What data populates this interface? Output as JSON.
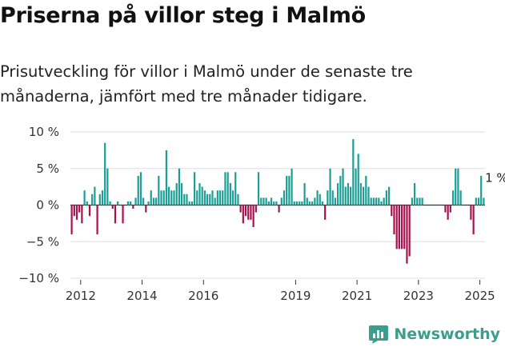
{
  "title": "Priserna på villor steg i Malmö",
  "subtitle": "Prisutveckling för villor i Malmö under de senaste tre månaderna, jämfört med tre månader tidigare.",
  "brand": {
    "name": "Newsworthy",
    "icon": "newsworthy-logo-icon"
  },
  "colors": {
    "positive": "#1a9e96",
    "negative": "#a8104e",
    "axis": "#333333",
    "grid": "#dddddd"
  },
  "chart_data": {
    "type": "bar",
    "start": "2011-09",
    "frequency": "monthly",
    "ylim": [
      -10,
      10
    ],
    "yticks": [
      -10,
      -5,
      0,
      5,
      10
    ],
    "ytick_labels": [
      "−10 %",
      "−5 %",
      "0 %",
      "5 %",
      "10 %"
    ],
    "xticks": [
      "2012",
      "2014",
      "2016",
      "2019",
      "2021",
      "2023",
      "2025"
    ],
    "annotation": {
      "text": "1 %",
      "value": 1
    },
    "values": [
      -4,
      -1.5,
      -2,
      -1,
      -2.5,
      2,
      0.5,
      -1.5,
      1.5,
      2.5,
      -4,
      1.5,
      2,
      8.5,
      5,
      0.5,
      -0.5,
      -2.5,
      0.5,
      0,
      -2.5,
      0,
      0.5,
      0.5,
      -0.5,
      1,
      4,
      4.5,
      1,
      -1,
      0.5,
      2,
      1,
      1,
      4,
      2,
      2,
      7.5,
      2.5,
      2,
      2,
      3,
      5,
      3,
      1.5,
      1.5,
      0.5,
      0.5,
      4.5,
      2,
      3,
      2.5,
      2,
      1.5,
      1.5,
      2,
      1,
      2,
      2,
      2,
      4.5,
      4.5,
      3,
      2,
      4.5,
      1.5,
      -1,
      -2.5,
      -1.5,
      -2,
      -2,
      -3,
      -1,
      4.5,
      1,
      1,
      1,
      0.5,
      1,
      0.5,
      0.5,
      -1,
      1,
      2,
      4,
      4,
      5,
      0.5,
      0.5,
      0.5,
      0.5,
      3,
      1,
      0.5,
      0.5,
      1,
      2,
      1.5,
      0.5,
      -2,
      2,
      5,
      2,
      1,
      3,
      4,
      5,
      2.5,
      3,
      2.5,
      9,
      5,
      7,
      3,
      2.5,
      4,
      2.5,
      1,
      1,
      1,
      1,
      0.5,
      1,
      2,
      2.5,
      -1.5,
      -4,
      -6,
      -6,
      -6,
      -6,
      -8,
      -7,
      1,
      3,
      1,
      1,
      1,
      0,
      0,
      0,
      0,
      0,
      0,
      0,
      0,
      -1,
      -2,
      -1,
      2,
      5,
      5,
      2,
      0,
      0,
      0,
      -2,
      -4,
      1,
      1,
      4,
      1
    ]
  }
}
